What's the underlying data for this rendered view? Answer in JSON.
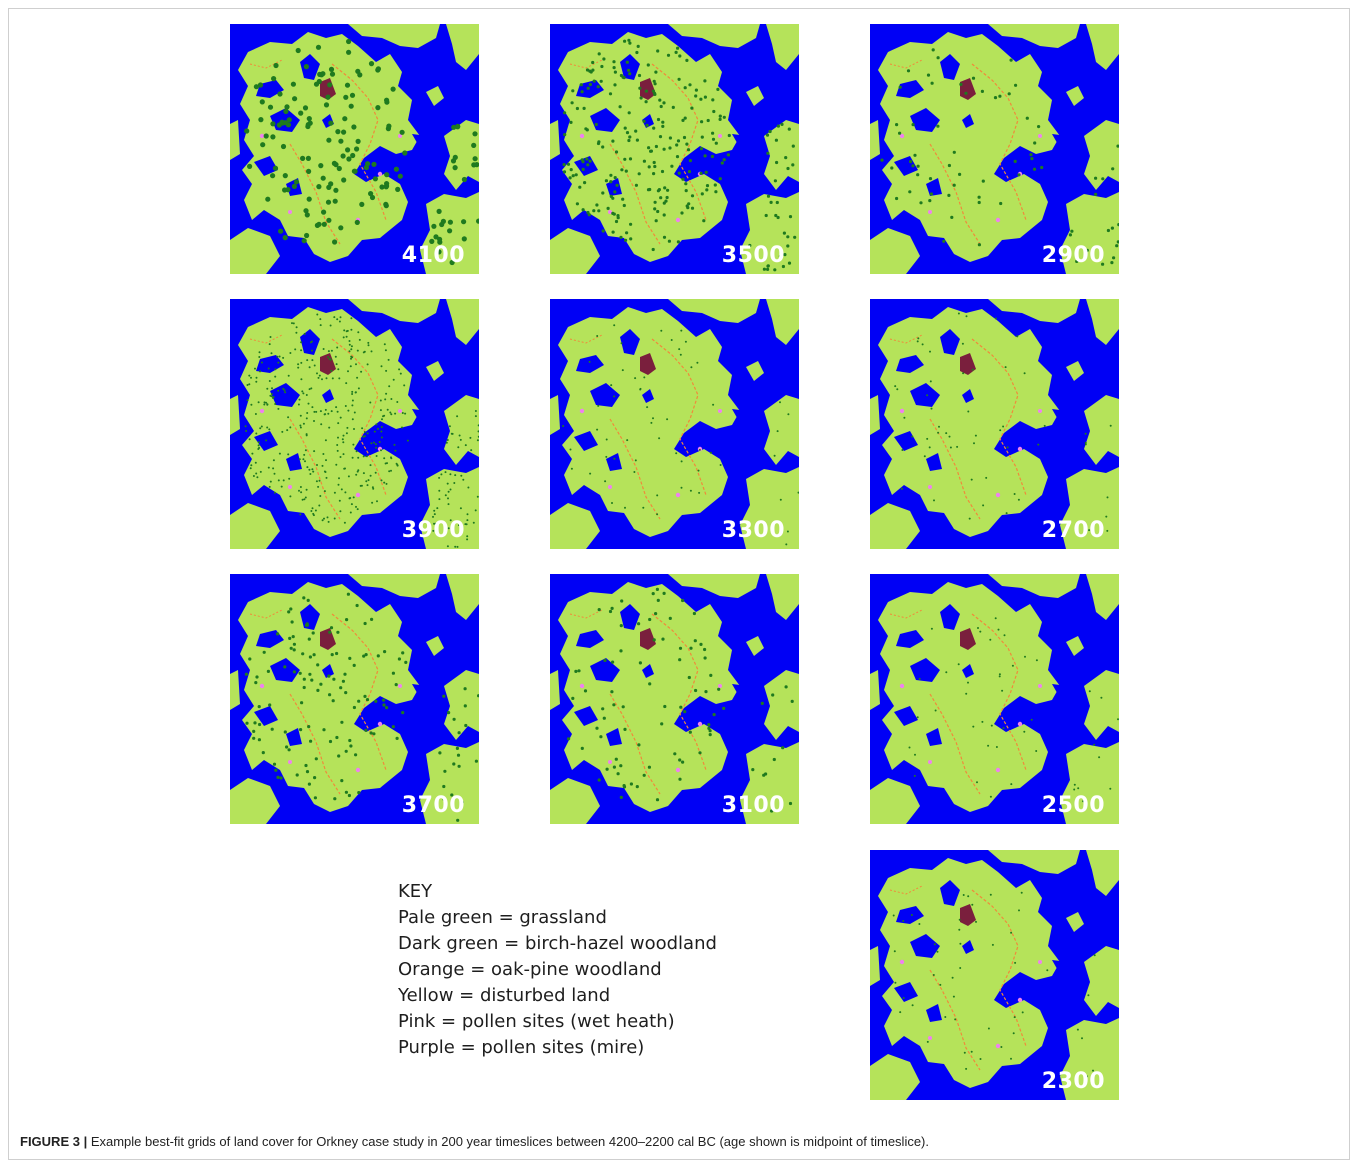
{
  "figure": {
    "panels": [
      {
        "label": "4100",
        "dark_dots": 160,
        "dot_size": "large"
      },
      {
        "label": "3500",
        "dark_dots": 260,
        "dot_size": "small"
      },
      {
        "label": "2900",
        "dark_dots": 70,
        "dot_size": "small"
      },
      {
        "label": "3900",
        "dark_dots": 420,
        "dot_size": "tiny"
      },
      {
        "label": "3300",
        "dark_dots": 60,
        "dot_size": "tiny"
      },
      {
        "label": "2700",
        "dark_dots": 55,
        "dot_size": "tiny"
      },
      {
        "label": "3700",
        "dark_dots": 140,
        "dot_size": "small"
      },
      {
        "label": "3100",
        "dark_dots": 90,
        "dot_size": "small"
      },
      {
        "label": "2500",
        "dark_dots": 45,
        "dot_size": "tiny"
      },
      {
        "label": "2300",
        "dark_dots": 50,
        "dot_size": "tiny"
      }
    ],
    "colors": {
      "sea": "#0000f5",
      "grassland": "#b5e35a",
      "woodland_dark": "#1f7a1f",
      "oak_pine": "#f08a3a",
      "pollen_wet_heath": "#ee82ee",
      "pollen_mire": "#7a1f3d"
    }
  },
  "key": {
    "title": "KEY",
    "items": [
      "Pale green = grassland",
      "Dark green = birch-hazel woodland",
      "Orange = oak-pine woodland",
      "Yellow = disturbed land",
      "Pink = pollen sites (wet heath)",
      "Purple = pollen sites (mire)"
    ]
  },
  "caption": {
    "label": "FIGURE 3 |",
    "text": " Example best-fit grids of land cover for Orkney case study in 200 year timeslices between 4200–2200 cal BC (age shown is midpoint of timeslice)."
  }
}
